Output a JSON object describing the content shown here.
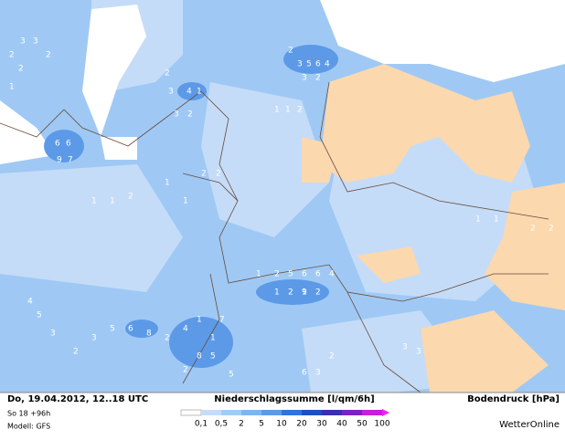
{
  "footer": {
    "date": "Do, 19.04.2012, 12..18 UTC",
    "run": "So 18 +96h",
    "model": "Modell: GFS",
    "right_title": "Bodendruck [hPa]",
    "brand": "WetterOnline"
  },
  "legend": {
    "title": "Niederschlagssumme [l/qm/6h]",
    "steps": [
      {
        "label": "0,1",
        "color": "#ffffff"
      },
      {
        "label": "0,5",
        "color": "#c4dcf8"
      },
      {
        "label": "2",
        "color": "#a2cbf4"
      },
      {
        "label": "5",
        "color": "#7fb5ef"
      },
      {
        "label": "10",
        "color": "#5c9ae8"
      },
      {
        "label": "20",
        "color": "#2f74dc"
      },
      {
        "label": "30",
        "color": "#1c4fc2"
      },
      {
        "label": "40",
        "color": "#3a2fb0"
      },
      {
        "label": "50",
        "color": "#7a22c4"
      },
      {
        "label": "100",
        "color": "#c81ed6"
      }
    ],
    "end_color": "#f020f0"
  },
  "map_labels": [
    "2",
    "3",
    "3",
    "2",
    "2",
    "1",
    "2",
    "3",
    "5",
    "6",
    "4",
    "3",
    "2",
    "1",
    "1",
    "2",
    "2",
    "6",
    "6",
    "9",
    "7",
    "1",
    "1",
    "2",
    "2",
    "3",
    "2",
    "1",
    "4",
    "3",
    "1",
    "1",
    "2",
    "1",
    "2",
    "5",
    "6",
    "6",
    "4",
    "1",
    "2",
    "1",
    "2",
    "9",
    "4",
    "5",
    "3",
    "2",
    "3",
    "5",
    "6",
    "8",
    "2",
    "4",
    "1",
    "1",
    "8",
    "5",
    "7",
    "2",
    "5",
    "6",
    "3",
    "2",
    "3",
    "3",
    "2",
    "2",
    "1",
    "1"
  ]
}
